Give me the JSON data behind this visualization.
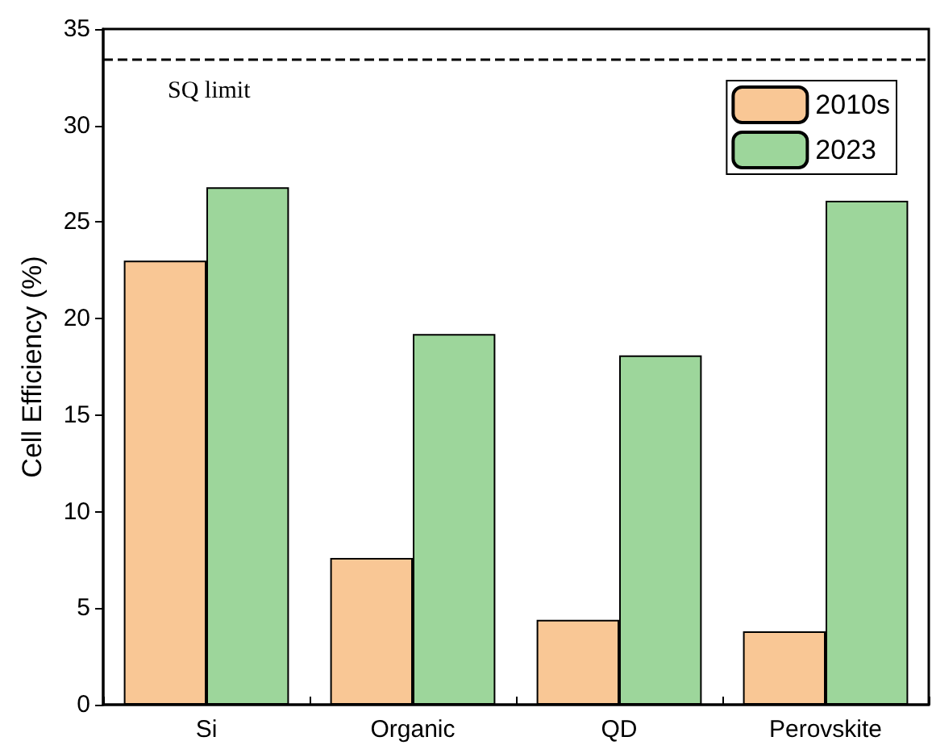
{
  "chart_data": {
    "type": "bar",
    "ylabel": "Cell Efficiency (%)",
    "categories": [
      "Si",
      "Organic",
      "QD",
      "Perovskite"
    ],
    "series": [
      {
        "name": "2010s",
        "color": "#f9c795",
        "values": [
          23.0,
          7.6,
          4.4,
          3.8
        ]
      },
      {
        "name": "2023",
        "color": "#9dd69b",
        "values": [
          26.8,
          19.2,
          18.1,
          26.1
        ]
      }
    ],
    "ylim": [
      0,
      35
    ],
    "yticks": [
      0,
      5,
      10,
      15,
      20,
      25,
      30,
      35
    ],
    "grid": false,
    "legend": "top right",
    "ref_lines": [
      {
        "axis": "y",
        "value": 33.4,
        "label": "SQ limit",
        "line_style": "dashed",
        "color": "#000000"
      }
    ]
  }
}
